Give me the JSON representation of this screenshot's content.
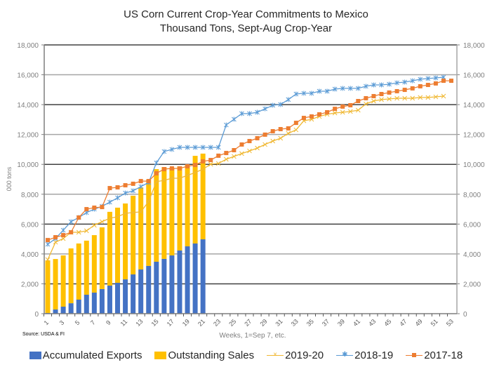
{
  "chart_data": {
    "type": "bar",
    "title": "US Corn Current Crop-Year Commitments to Mexico",
    "subtitle": "Thousand Tons, Sept-Aug Crop-Year",
    "xlabel": "Weeks, 1=Sep 7, etc.",
    "ylabel": "000 tons",
    "source": "Source: USDA & FI",
    "ylim": [
      0,
      18000
    ],
    "yticks": [
      0,
      2000,
      4000,
      6000,
      8000,
      10000,
      12000,
      14000,
      16000,
      18000
    ],
    "ytick_labels": [
      "0",
      "2,000",
      "4,000",
      "6,000",
      "8,000",
      "10,000",
      "12,000",
      "14,000",
      "16,000",
      "18,000"
    ],
    "xlim": [
      1,
      53
    ],
    "xtick_labels": [
      "1",
      "3",
      "5",
      "7",
      "9",
      "11",
      "13",
      "15",
      "17",
      "19",
      "21",
      "23",
      "25",
      "27",
      "29",
      "31",
      "33",
      "35",
      "37",
      "39",
      "41",
      "43",
      "45",
      "47",
      "49",
      "51",
      "53"
    ],
    "grid": true,
    "legend_position": "bottom",
    "colors": {
      "accumulated_exports": "#4472C4",
      "outstanding_sales": "#FFC000",
      "y2019_20": "#F0B833",
      "y2018_19": "#5B9BD5",
      "y2017_18": "#ED7D31"
    },
    "bar_series": [
      {
        "name": "Accumulated Exports",
        "stack": "bottom",
        "weeks": [
          1,
          2,
          3,
          4,
          5,
          6,
          7,
          8,
          9,
          10,
          11,
          12,
          13,
          14,
          15,
          16,
          17,
          18,
          19,
          20,
          21
        ],
        "values": [
          50,
          280,
          470,
          700,
          940,
          1270,
          1410,
          1650,
          1880,
          2070,
          2300,
          2630,
          2960,
          3200,
          3480,
          3670,
          3900,
          4230,
          4510,
          4700,
          4980
        ]
      },
      {
        "name": "Outstanding Sales",
        "stack": "top",
        "weeks": [
          1,
          2,
          3,
          4,
          5,
          6,
          7,
          8,
          9,
          10,
          11,
          12,
          13,
          14,
          15,
          16,
          17,
          18,
          19,
          20,
          21
        ],
        "values": [
          3520,
          3380,
          3430,
          3670,
          3760,
          3620,
          3850,
          4130,
          4940,
          5030,
          5080,
          5270,
          5500,
          5780,
          6200,
          6150,
          5880,
          5640,
          5450,
          5870,
          5740
        ]
      }
    ],
    "line_series": [
      {
        "name": "2019-20",
        "marker": "x",
        "values": [
          3620,
          4790,
          5030,
          5450,
          5450,
          5550,
          5920,
          6160,
          6390,
          6490,
          6720,
          6770,
          6820,
          7520,
          8840,
          8930,
          9070,
          9070,
          9260,
          9450,
          9680,
          10010,
          10060,
          10340,
          10530,
          10720,
          10900,
          11090,
          11330,
          11560,
          11750,
          12080,
          12310,
          12920,
          13020,
          13210,
          13350,
          13440,
          13490,
          13540,
          13630,
          14050,
          14240,
          14340,
          14380,
          14430,
          14430,
          14430,
          14480,
          14480,
          14520,
          14570
        ]
      },
      {
        "name": "2018-19",
        "marker": "star",
        "values": [
          4650,
          5030,
          5590,
          6160,
          6440,
          6770,
          7000,
          7190,
          7470,
          7760,
          8080,
          8230,
          8510,
          8790,
          10100,
          10860,
          11000,
          11140,
          11140,
          11140,
          11140,
          11140,
          11140,
          12640,
          13020,
          13400,
          13400,
          13490,
          13720,
          13960,
          14010,
          14340,
          14710,
          14760,
          14760,
          14900,
          14900,
          15040,
          15090,
          15090,
          15090,
          15230,
          15320,
          15320,
          15370,
          15460,
          15510,
          15600,
          15700,
          15750,
          15790,
          15840
        ]
      },
      {
        "name": "2017-18",
        "marker": "square",
        "values": [
          4930,
          5120,
          5260,
          5450,
          6440,
          7000,
          7100,
          7140,
          8410,
          8460,
          8600,
          8700,
          8880,
          8880,
          9400,
          9680,
          9730,
          9730,
          9870,
          9960,
          10200,
          10290,
          10580,
          10760,
          10950,
          11330,
          11560,
          11750,
          11990,
          12220,
          12360,
          12410,
          12780,
          13110,
          13210,
          13350,
          13490,
          13720,
          13870,
          13960,
          14240,
          14430,
          14570,
          14710,
          14810,
          14900,
          14990,
          15090,
          15230,
          15320,
          15420,
          15600,
          15600
        ]
      }
    ]
  },
  "legend": {
    "items": [
      {
        "label": "Accumulated Exports"
      },
      {
        "label": "Outstanding Sales"
      },
      {
        "label": "2019-20"
      },
      {
        "label": "2018-19"
      },
      {
        "label": "2017-18"
      }
    ]
  }
}
